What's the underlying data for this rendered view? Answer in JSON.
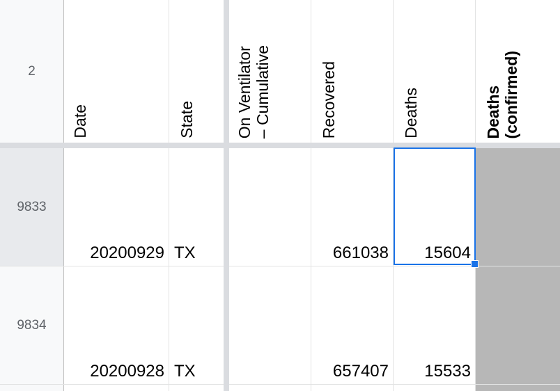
{
  "header_row": {
    "row_number": "2",
    "columns": [
      {
        "label": "Date",
        "bold": false
      },
      {
        "label": "State",
        "bold": false
      },
      {
        "label": "On Ventilator\n– Cumulative",
        "bold": false
      },
      {
        "label": "Recovered",
        "bold": false
      },
      {
        "label": "Deaths",
        "bold": false
      },
      {
        "label": "Deaths\n(confirmed)",
        "bold": true
      }
    ]
  },
  "rows": [
    {
      "row_number": "9833",
      "date": "20200929",
      "state": "TX",
      "on_ventilator": "",
      "recovered": "661038",
      "deaths": "15604",
      "deaths_confirmed": ""
    },
    {
      "row_number": "9834",
      "date": "20200928",
      "state": "TX",
      "on_ventilator": "",
      "recovered": "657407",
      "deaths": "15533",
      "deaths_confirmed": ""
    }
  ],
  "colors": {
    "selection": "#1a73e8",
    "empty_cell_gray": "#b7b7b7",
    "freeze_bar": "#dadce0"
  }
}
